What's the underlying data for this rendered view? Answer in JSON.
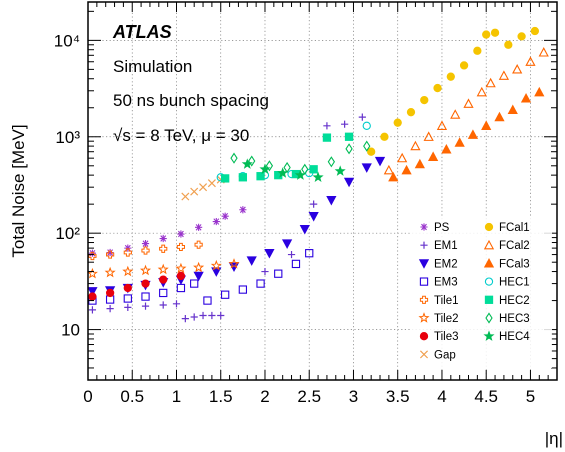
{
  "chart_data": {
    "type": "scatter",
    "xlabel": "|η|",
    "ylabel": "Total Noise [MeV]",
    "xlim": [
      0,
      5.3
    ],
    "ylim": [
      3,
      25000
    ],
    "yscale": "log",
    "grid": true,
    "x_ticks": [
      0,
      0.5,
      1,
      1.5,
      2,
      2.5,
      3,
      3.5,
      4,
      4.5,
      5
    ],
    "x_tick_labels": [
      "0",
      "0.5",
      "1",
      "1.5",
      "2",
      "2.5",
      "3",
      "3.5",
      "4",
      "4.5",
      "5"
    ],
    "y_ticks": [
      10,
      100,
      1000,
      10000
    ],
    "y_tick_labels": [
      "10",
      "10²",
      "10³",
      "10⁴"
    ],
    "annotations": {
      "experiment": "ATLAS",
      "line1": "Simulation",
      "line2": "50 ns bunch spacing",
      "line3": "√s = 8 TeV, μ = 30"
    },
    "legend_position": "bottom-right",
    "legend_columns": [
      [
        "PS",
        "EM1",
        "EM2",
        "EM3",
        "Tile1",
        "Tile2",
        "Tile3",
        "Gap"
      ],
      [
        "FCal1",
        "FCal2",
        "FCal3",
        "HEC1",
        "HEC2",
        "HEC3",
        "HEC4"
      ]
    ],
    "series": [
      {
        "name": "PS",
        "marker": "asterisk",
        "color": "#9933cc",
        "x": [
          0.05,
          0.25,
          0.45,
          0.65,
          0.85,
          1.05,
          1.25,
          1.45,
          1.55,
          1.75
        ],
        "y": [
          62,
          63,
          70,
          78,
          88,
          98,
          115,
          132,
          150,
          175
        ]
      },
      {
        "name": "EM1",
        "marker": "plus",
        "color": "#6633cc",
        "x": [
          0.05,
          0.25,
          0.45,
          0.65,
          0.85,
          1.0,
          1.1,
          1.2,
          1.3,
          1.4,
          1.5,
          2.0,
          2.3,
          2.55,
          2.7,
          2.9,
          3.1
        ],
        "y": [
          16,
          16.5,
          17,
          17.5,
          18,
          18.5,
          13,
          13.5,
          14,
          14,
          14,
          40,
          60,
          200,
          1300,
          1350,
          1600
        ]
      },
      {
        "name": "EM2",
        "marker": "triangle-down",
        "color": "#2a00e0",
        "x": [
          0.05,
          0.25,
          0.45,
          0.65,
          0.85,
          1.05,
          1.25,
          1.45,
          1.65,
          1.85,
          2.05,
          2.25,
          2.45,
          2.55,
          2.75,
          2.95,
          3.15,
          3.3
        ],
        "y": [
          25,
          25.5,
          27,
          29,
          31,
          33,
          36,
          40,
          45,
          52,
          62,
          78,
          110,
          150,
          220,
          340,
          480,
          560
        ]
      },
      {
        "name": "EM3",
        "marker": "square-open",
        "color": "#2a00e0",
        "x": [
          0.05,
          0.25,
          0.45,
          0.65,
          0.85,
          1.05,
          1.2,
          1.35,
          1.55,
          1.75,
          1.95,
          2.15,
          2.35,
          2.5
        ],
        "y": [
          20,
          20.5,
          21,
          22,
          24,
          27,
          30,
          20,
          23,
          26,
          30,
          38,
          48,
          62
        ]
      },
      {
        "name": "Tile1",
        "marker": "cross-open",
        "color": "#ff6600",
        "x": [
          0.05,
          0.25,
          0.45,
          0.65,
          0.85,
          1.05,
          1.25
        ],
        "y": [
          58,
          60,
          63,
          66,
          69,
          72,
          76
        ]
      },
      {
        "name": "Tile2",
        "marker": "star-open",
        "color": "#ff6600",
        "x": [
          0.05,
          0.25,
          0.45,
          0.65,
          0.85,
          1.05,
          1.25,
          1.45,
          1.65
        ],
        "y": [
          38,
          39,
          40,
          41,
          42,
          43,
          44,
          46,
          48
        ]
      },
      {
        "name": "Tile3",
        "marker": "circle",
        "color": "#e8000d",
        "x": [
          0.05,
          0.25,
          0.45,
          0.65,
          0.85,
          1.05
        ],
        "y": [
          22,
          24,
          27,
          30,
          33,
          36
        ]
      },
      {
        "name": "Gap",
        "marker": "x",
        "color": "#f0a050",
        "x": [
          1.1,
          1.2,
          1.3,
          1.4,
          1.5
        ],
        "y": [
          240,
          270,
          300,
          330,
          360
        ]
      },
      {
        "name": "FCal1",
        "marker": "circle",
        "color": "#f5c400",
        "x": [
          3.2,
          3.35,
          3.5,
          3.65,
          3.8,
          3.95,
          4.1,
          4.25,
          4.4,
          4.5,
          4.6,
          4.75,
          4.9,
          5.05
        ],
        "y": [
          700,
          1000,
          1400,
          1800,
          2400,
          3200,
          4200,
          5500,
          7800,
          11500,
          12000,
          9000,
          11000,
          12500
        ]
      },
      {
        "name": "FCal2",
        "marker": "triangle-up-open",
        "color": "#ff6600",
        "x": [
          3.4,
          3.55,
          3.7,
          3.85,
          4.0,
          4.15,
          4.3,
          4.45,
          4.55,
          4.7,
          4.85,
          5.0,
          5.15
        ],
        "y": [
          450,
          600,
          800,
          1000,
          1300,
          1700,
          2200,
          2900,
          3600,
          4300,
          5000,
          6000,
          7500
        ]
      },
      {
        "name": "FCal3",
        "marker": "triangle-up",
        "color": "#ff6600",
        "x": [
          3.45,
          3.6,
          3.75,
          3.9,
          4.05,
          4.2,
          4.35,
          4.5,
          4.65,
          4.8,
          4.95,
          5.1
        ],
        "y": [
          380,
          450,
          520,
          620,
          740,
          870,
          1050,
          1300,
          1600,
          1900,
          2500,
          2900
        ]
      },
      {
        "name": "HEC1",
        "marker": "circle-open",
        "color": "#00cccc",
        "x": [
          1.5,
          1.75,
          2.0,
          2.3,
          2.5,
          3.15
        ],
        "y": [
          380,
          390,
          400,
          410,
          420,
          1300
        ]
      },
      {
        "name": "HEC2",
        "marker": "square",
        "color": "#00dd99",
        "x": [
          1.55,
          1.75,
          1.95,
          2.15,
          2.35,
          2.55,
          2.7,
          2.95
        ],
        "y": [
          370,
          380,
          390,
          400,
          410,
          460,
          980,
          1000
        ]
      },
      {
        "name": "HEC3",
        "marker": "diamond-open",
        "color": "#00bb55",
        "x": [
          1.65,
          1.85,
          2.05,
          2.25,
          2.45,
          2.75,
          2.95,
          3.15
        ],
        "y": [
          600,
          560,
          500,
          480,
          460,
          550,
          750,
          800
        ]
      },
      {
        "name": "HEC4",
        "marker": "star",
        "color": "#00bb55",
        "x": [
          1.8,
          2.0,
          2.2,
          2.4,
          2.6,
          2.85
        ],
        "y": [
          520,
          460,
          420,
          400,
          380,
          440
        ]
      }
    ]
  }
}
